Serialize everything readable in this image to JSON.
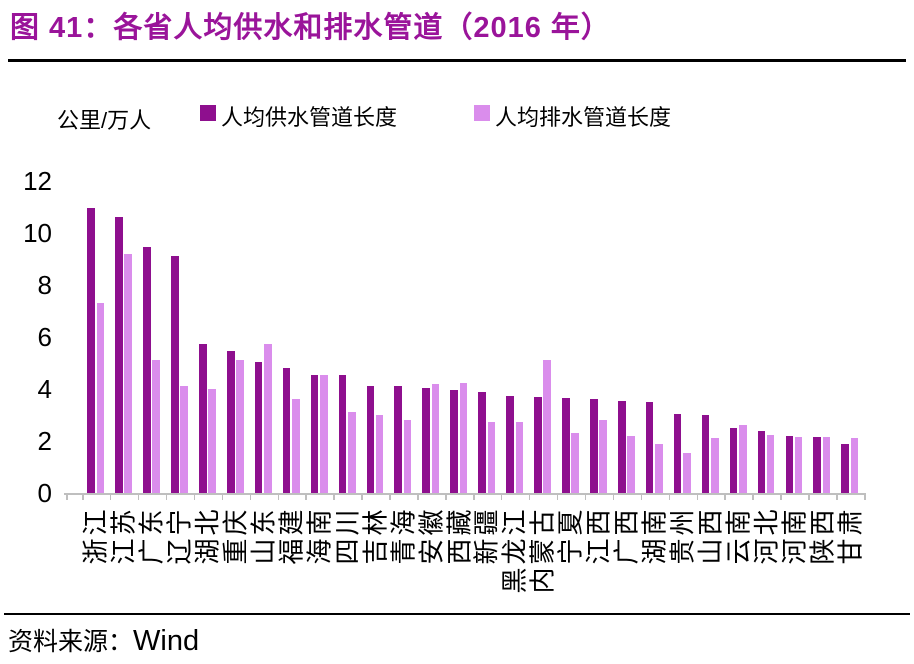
{
  "title": "图 41：各省人均供水和排水管道（2016 年）",
  "unit_label": "公里/万人",
  "colors": {
    "title": "#9a149a",
    "supply_bar": "#8e0f8e",
    "drain_bar": "#da8dec",
    "axis": "#bfbfbf",
    "rule": "#000000"
  },
  "legend": [
    {
      "label": "人均供水管道长度",
      "color": "#8e0f8e"
    },
    {
      "label": "人均排水管道长度",
      "color": "#da8dec"
    }
  ],
  "source": {
    "prefix": "资料来源：",
    "name": "Wind"
  },
  "chart_data": {
    "type": "bar",
    "title": "各省人均供水和排水管道（2016 年）",
    "ylabel": "公里/万人",
    "ylim": [
      0,
      12
    ],
    "yticks": [
      0,
      2,
      4,
      6,
      8,
      10,
      12
    ],
    "grid": false,
    "legend_position": "top",
    "categories": [
      "浙江",
      "江苏",
      "广东",
      "辽宁",
      "湖北",
      "重庆",
      "山东",
      "福建",
      "海南",
      "四川",
      "吉林",
      "青海",
      "安徽",
      "西藏",
      "新疆",
      "黑龙江",
      "内蒙古",
      "宁夏",
      "江西",
      "广西",
      "湖南",
      "贵州",
      "山西",
      "云南",
      "河北",
      "河南",
      "陕西",
      "甘肃"
    ],
    "series": [
      {
        "name": "人均供水管道长度",
        "color": "#8e0f8e",
        "values": [
          10.95,
          10.6,
          9.45,
          9.1,
          5.75,
          5.45,
          5.05,
          4.8,
          4.55,
          4.55,
          4.1,
          4.1,
          4.05,
          3.95,
          3.9,
          3.75,
          3.7,
          3.65,
          3.6,
          3.55,
          3.5,
          3.05,
          3.0,
          2.5,
          2.4,
          2.2,
          2.15,
          1.9
        ]
      },
      {
        "name": "人均排水管道长度",
        "color": "#da8dec",
        "values": [
          7.3,
          9.2,
          5.1,
          4.1,
          4.0,
          5.1,
          5.75,
          3.6,
          4.55,
          3.1,
          3.0,
          2.8,
          4.2,
          4.25,
          2.75,
          2.75,
          5.1,
          2.3,
          2.8,
          2.2,
          1.9,
          1.55,
          2.1,
          2.6,
          2.25,
          2.15,
          2.15,
          2.1
        ]
      }
    ]
  }
}
